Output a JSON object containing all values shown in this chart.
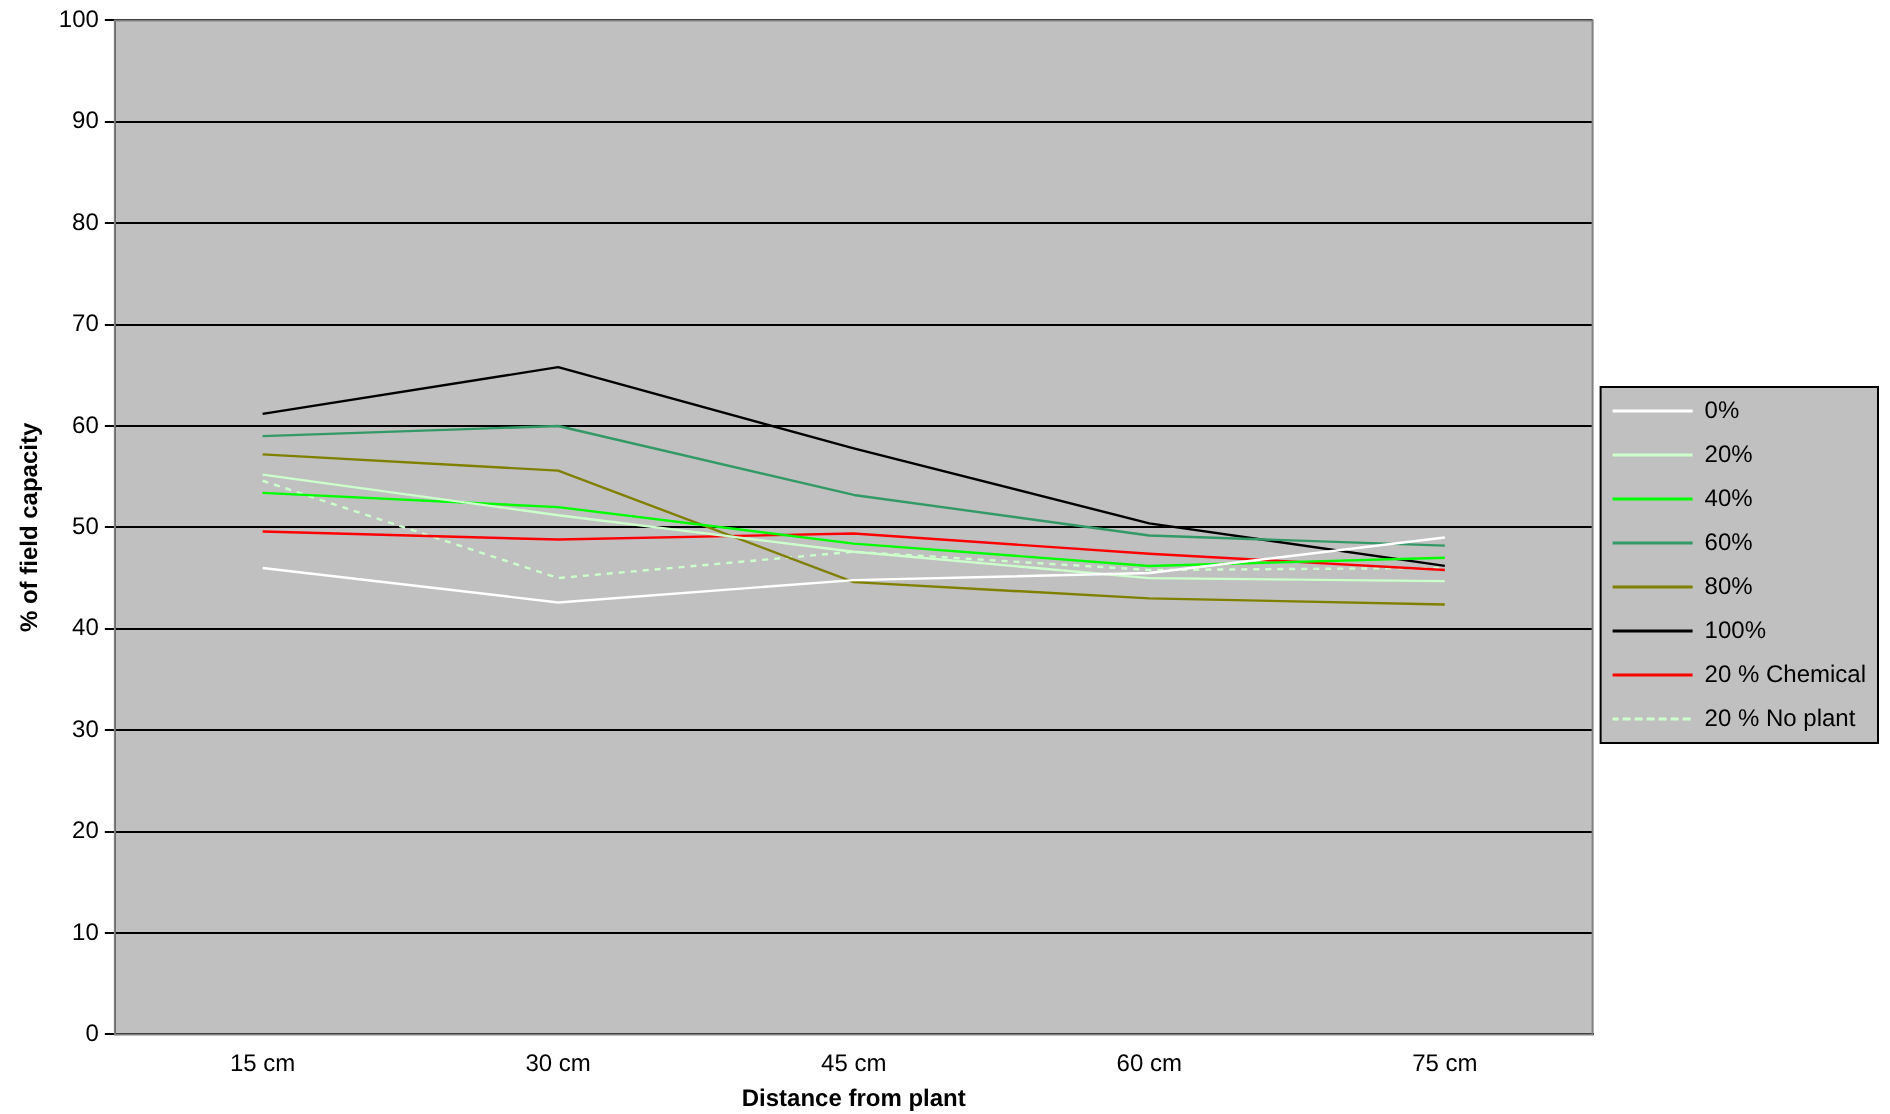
{
  "chart_data": {
    "type": "line",
    "xlabel": "Distance from plant",
    "ylabel": "% of field capacity",
    "categories": [
      "15 cm",
      "30 cm",
      "45 cm",
      "60 cm",
      "75 cm"
    ],
    "ylim": [
      0,
      100
    ],
    "yticks": [
      0,
      10,
      20,
      30,
      40,
      50,
      60,
      70,
      80,
      90,
      100
    ],
    "grid": "y",
    "legend": "right",
    "marker": "none",
    "line_style": "solid",
    "series": [
      {
        "name": "0%",
        "color": "#ffffff",
        "values": [
          46,
          42.6,
          44.8,
          45.5,
          49
        ]
      },
      {
        "name": "20%",
        "color": "#ccffcc",
        "values": [
          55.2,
          51.2,
          47.6,
          45,
          44.7
        ]
      },
      {
        "name": "40%",
        "color": "#00ff00",
        "values": [
          53.4,
          52,
          48.4,
          46.2,
          47
        ]
      },
      {
        "name": "60%",
        "color": "#339966",
        "values": [
          59,
          60,
          53.2,
          49.2,
          48.2
        ]
      },
      {
        "name": "80%",
        "color": "#808000",
        "values": [
          57.2,
          55.6,
          44.6,
          43,
          42.4
        ]
      },
      {
        "name": "100%",
        "color": "#000000",
        "values": [
          61.2,
          65.8,
          57.8,
          50.4,
          46.2
        ]
      },
      {
        "name": "20 % Chemical",
        "color": "#ff0000",
        "values": [
          49.6,
          48.8,
          49.4,
          47.4,
          45.8
        ]
      },
      {
        "name": "20 % No plant",
        "color": "#ccffcc",
        "line_style": "dotted",
        "values": [
          54.6,
          45,
          47.6,
          45.8,
          46
        ]
      }
    ]
  }
}
